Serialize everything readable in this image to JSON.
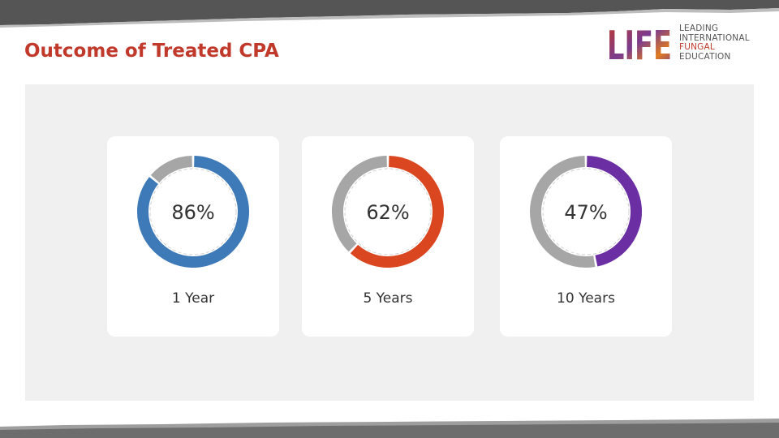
{
  "title": "Outcome of Treated CPA",
  "logo": {
    "mark": "LIFE",
    "lines": [
      "LEADING",
      "INTERNATIONAL",
      "FUNGAL",
      "EDUCATION"
    ]
  },
  "chart_data": {
    "type": "pie",
    "style": "donut",
    "remainder_color": "#a6a6a6",
    "charts": [
      {
        "label": "1 Year",
        "value": 86,
        "value_label": "86%",
        "color": "#3e7ab8"
      },
      {
        "label": "5 Years",
        "value": 62,
        "value_label": "62%",
        "color": "#d9461f"
      },
      {
        "label": "10 Years",
        "value": 47,
        "value_label": "47%",
        "color": "#6b2fa3"
      }
    ]
  }
}
